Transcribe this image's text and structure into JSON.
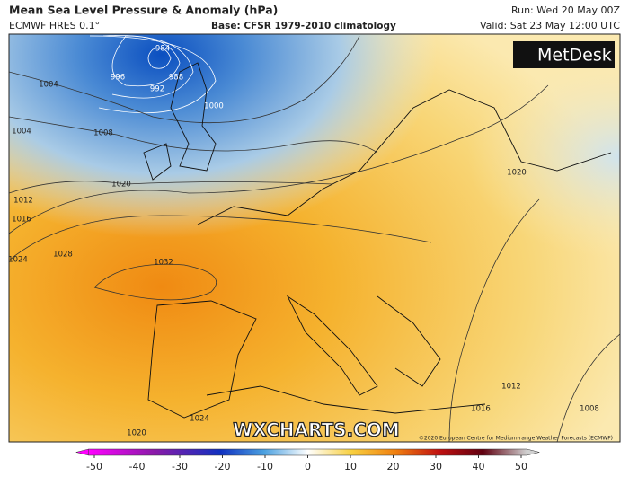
{
  "header": {
    "title": "Mean Sea Level Pressure & Anomaly (hPa)",
    "model": "ECMWF HRES 0.1°",
    "base": "Base: CFSR 1979-2010 climatology",
    "run": "Run: Wed 20 May 00Z",
    "valid": "Valid: Sat 23 May 12:00 UTC"
  },
  "logo": "MetDesk",
  "watermark": "WXCHARTS.COM",
  "copyright": "©2020 European Centre for Medium-range Weather Forecasts (ECMWF)",
  "isobars": [
    "984",
    "988",
    "992",
    "996",
    "1000",
    "1004",
    "1004",
    "1008",
    "1012",
    "1016",
    "1020",
    "1024",
    "1028",
    "1032",
    "1020",
    "1016",
    "1012",
    "1008",
    "1024",
    "1020"
  ],
  "colorbar": {
    "lim": [
      -53,
      53
    ],
    "ticks": [
      -50,
      -40,
      -30,
      -20,
      -10,
      0,
      10,
      20,
      30,
      40,
      50
    ]
  }
}
